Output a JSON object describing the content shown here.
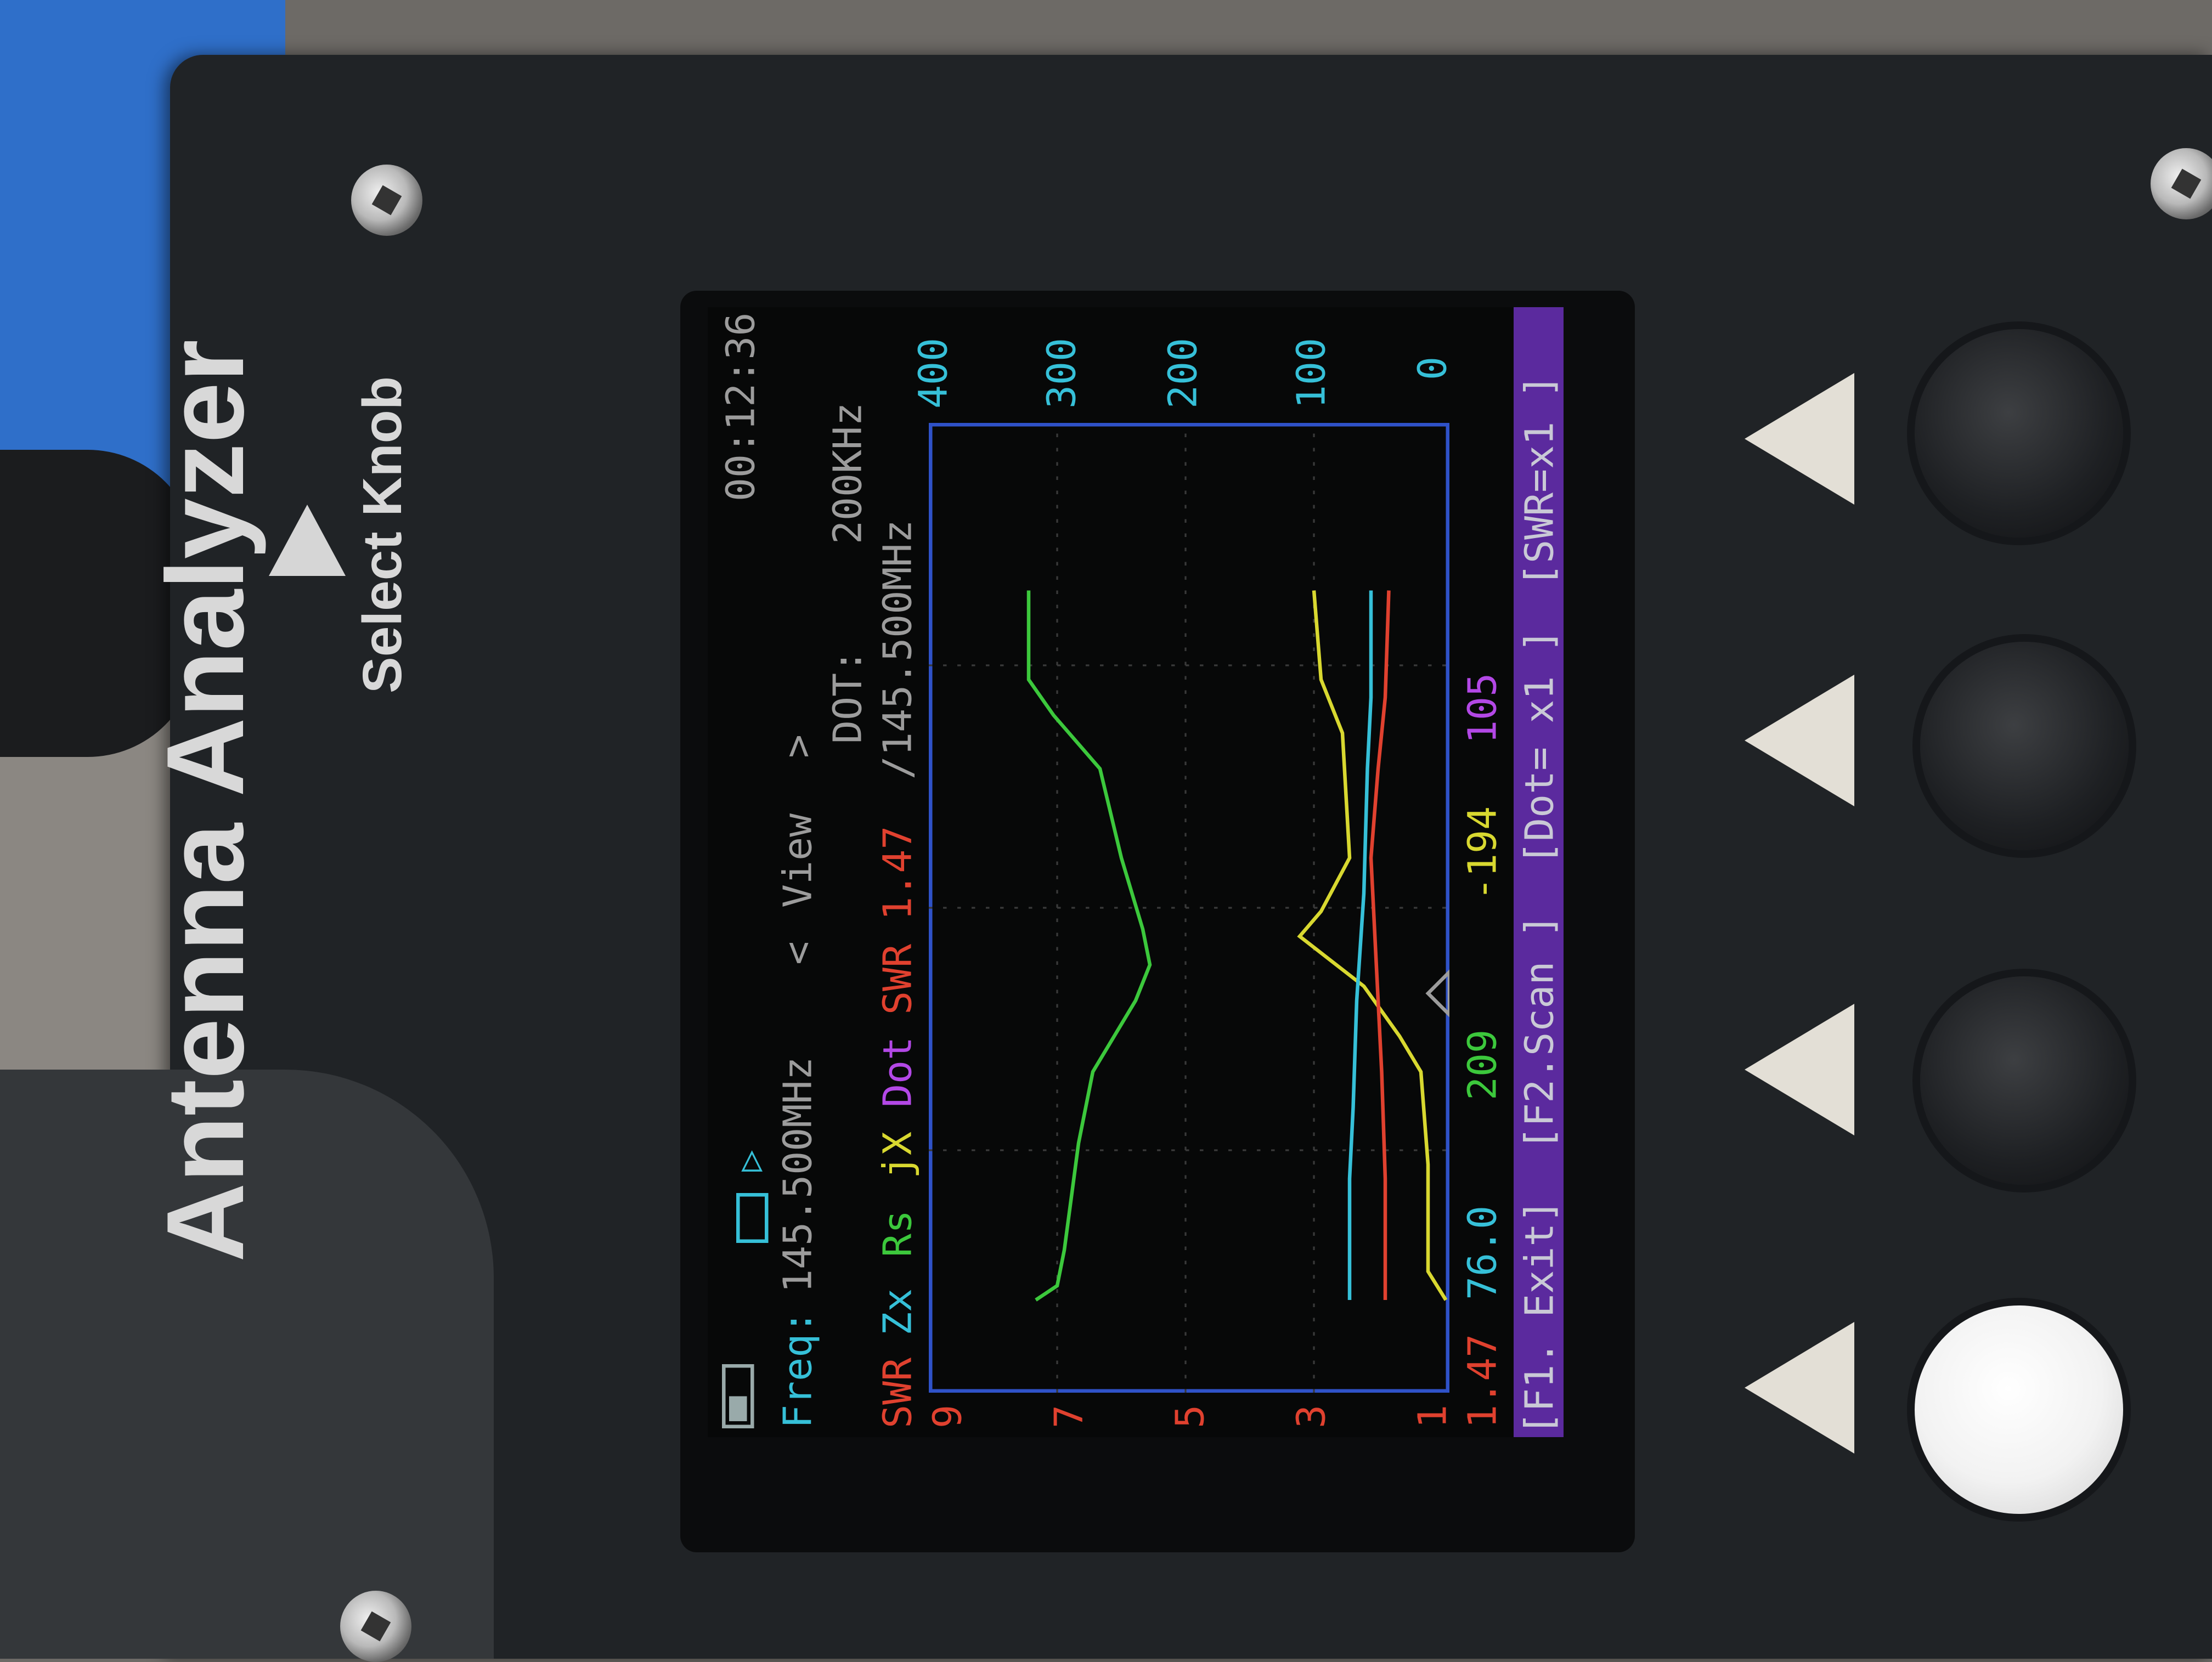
{
  "device": {
    "title": "Antenna Analyzer",
    "knob_label": "Select Knob"
  },
  "screen": {
    "freq_label": "Freq:",
    "freq_value": "145.500MHz",
    "clock": "00:12:36",
    "nav_prev": "<",
    "view_label": "View",
    "nav_next": ">",
    "dot_label": "DOT:",
    "dot_value": "200KHz",
    "legend": {
      "swr": "SWR",
      "zx": "Zx",
      "rs": "Rs",
      "jx": "jX",
      "dot": "Dot",
      "swr_marker_label": "SWR 1.47",
      "swr_marker_freq": "/145.500MHz"
    },
    "left_axis_ticks": [
      "9",
      "7",
      "5",
      "3",
      "1"
    ],
    "right_axis_ticks": [
      "400",
      "300",
      "200",
      "100",
      "0"
    ],
    "readouts": {
      "swr": "1.47",
      "zx": "76.0",
      "rs": "209",
      "jx": "-194",
      "dot": "105"
    },
    "softkeys": [
      "[F1. Exit]",
      "[F2.Scan ]",
      "[Dot= x1 ]",
      "[SWR=x1 ]"
    ],
    "colors": {
      "swr": "#e0412f",
      "zx": "#36c0d8",
      "rs": "#3cc83c",
      "jx": "#d8d830",
      "dot": "#b348e6",
      "grid": "#2f52c8",
      "softkey_bar": "#5b2a9e",
      "text_gray": "#9c9c9c"
    }
  },
  "buttons": [
    "arrow-1",
    "arrow-2",
    "arrow-3",
    "arrow-4"
  ]
}
